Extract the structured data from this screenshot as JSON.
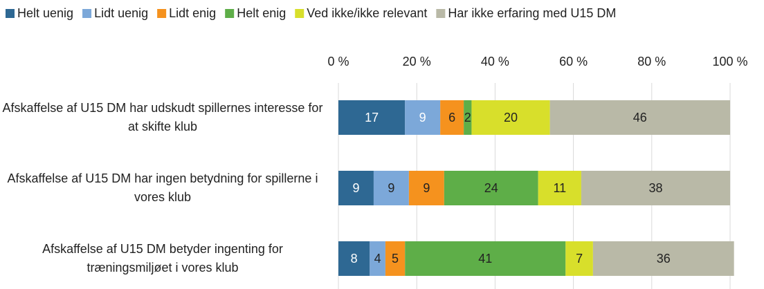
{
  "chart_data": {
    "type": "stacked-bar-horizontal",
    "categories": [
      "Afskaffelse af U15 DM har udskudt spillernes interesse for at skifte klub",
      "Afskaffelse af U15 DM har ingen betydning for spillerne i vores klub",
      "Afskaffelse af U15 DM betyder ingenting for træningsmiljøet i vores klub"
    ],
    "series": [
      {
        "name": "Helt uenig",
        "color": "#2e6893",
        "values": [
          17,
          9,
          8
        ]
      },
      {
        "name": "Lidt uenig",
        "color": "#7ca8d9",
        "values": [
          9,
          9,
          4
        ]
      },
      {
        "name": "Lidt enig",
        "color": "#f5921e",
        "values": [
          6,
          9,
          5
        ]
      },
      {
        "name": "Helt enig",
        "color": "#5eae48",
        "values": [
          2,
          24,
          41
        ]
      },
      {
        "name": "Ved ikke/ikke relevant",
        "color": "#d8df2b",
        "values": [
          20,
          11,
          7
        ]
      },
      {
        "name": "Har ikke erfaring med U15 DM",
        "color": "#b9b9a7",
        "values": [
          46,
          38,
          36
        ]
      }
    ],
    "xlim": [
      0,
      100
    ],
    "xticks": [
      {
        "value": 0,
        "label": "0 %"
      },
      {
        "value": 20,
        "label": "20 %"
      },
      {
        "value": 40,
        "label": "40 %"
      },
      {
        "value": 60,
        "label": "60 %"
      },
      {
        "value": 80,
        "label": "80 %"
      },
      {
        "value": 100,
        "label": "100 %"
      }
    ],
    "grid": true,
    "legend": "top"
  }
}
